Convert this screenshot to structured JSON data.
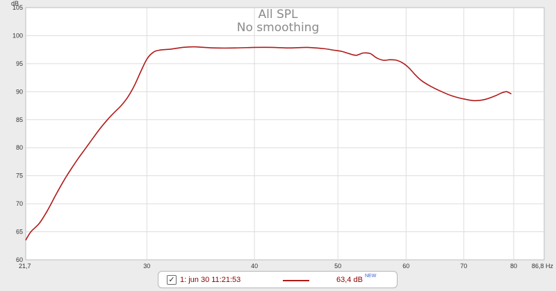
{
  "chart_data": {
    "type": "line",
    "title": "All SPL",
    "subtitle": "No smoothing",
    "ylabel": "dB",
    "xlabel": "Hz",
    "x_scale": "log",
    "xlim": [
      21.7,
      86.8
    ],
    "ylim": [
      60,
      105
    ],
    "x_ticks": [
      {
        "value": 21.7,
        "label": "21,7"
      },
      {
        "value": 30,
        "label": "30"
      },
      {
        "value": 40,
        "label": "40"
      },
      {
        "value": 50,
        "label": "50"
      },
      {
        "value": 60,
        "label": "60"
      },
      {
        "value": 70,
        "label": "70"
      },
      {
        "value": 80,
        "label": "80"
      },
      {
        "value": 86.8,
        "label": "86,8 Hz"
      }
    ],
    "y_ticks": [
      60,
      65,
      70,
      75,
      80,
      85,
      90,
      95,
      100,
      105
    ],
    "grid": true,
    "series": [
      {
        "color": "#b01818",
        "points": [
          [
            21.7,
            63.5
          ],
          [
            22.0,
            65.0
          ],
          [
            22.5,
            66.5
          ],
          [
            23.0,
            68.8
          ],
          [
            23.5,
            71.5
          ],
          [
            24.0,
            74.0
          ],
          [
            24.5,
            76.2
          ],
          [
            25.0,
            78.2
          ],
          [
            25.5,
            80.0
          ],
          [
            26.0,
            81.8
          ],
          [
            26.5,
            83.5
          ],
          [
            27.0,
            85.0
          ],
          [
            27.5,
            86.3
          ],
          [
            28.0,
            87.5
          ],
          [
            28.5,
            89.0
          ],
          [
            29.0,
            91.0
          ],
          [
            29.5,
            93.5
          ],
          [
            30.0,
            95.8
          ],
          [
            30.5,
            97.0
          ],
          [
            31.0,
            97.4
          ],
          [
            32.0,
            97.6
          ],
          [
            33.0,
            97.9
          ],
          [
            34.0,
            98.0
          ],
          [
            35.0,
            97.9
          ],
          [
            36.0,
            97.8
          ],
          [
            38.0,
            97.8
          ],
          [
            40.0,
            97.9
          ],
          [
            42.0,
            97.9
          ],
          [
            44.0,
            97.8
          ],
          [
            46.0,
            97.9
          ],
          [
            48.0,
            97.7
          ],
          [
            49.5,
            97.4
          ],
          [
            50.5,
            97.2
          ],
          [
            51.5,
            96.8
          ],
          [
            52.5,
            96.5
          ],
          [
            53.5,
            96.9
          ],
          [
            54.5,
            96.8
          ],
          [
            55.5,
            96.0
          ],
          [
            56.5,
            95.6
          ],
          [
            57.5,
            95.7
          ],
          [
            58.5,
            95.6
          ],
          [
            59.5,
            95.1
          ],
          [
            60.5,
            94.2
          ],
          [
            61.5,
            93.0
          ],
          [
            62.5,
            92.0
          ],
          [
            64.0,
            91.0
          ],
          [
            66.0,
            90.0
          ],
          [
            68.0,
            89.2
          ],
          [
            70.0,
            88.7
          ],
          [
            72.0,
            88.4
          ],
          [
            74.0,
            88.6
          ],
          [
            76.0,
            89.2
          ],
          [
            77.5,
            89.8
          ],
          [
            78.5,
            90.0
          ],
          [
            79.5,
            89.6
          ]
        ]
      }
    ]
  },
  "legend": {
    "checked": true,
    "check_glyph": "✓",
    "label": "1: jun 30 11:21:53",
    "value": "63,4 dB",
    "badge": "NEW"
  }
}
